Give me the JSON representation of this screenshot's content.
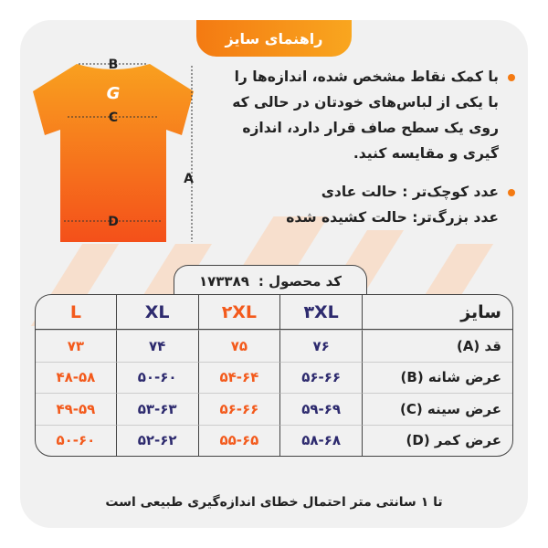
{
  "title": "راهنمای سایز",
  "shirt_labels": {
    "b": "B",
    "c": "C",
    "d": "D",
    "a": "A"
  },
  "instructions": {
    "bullet1": "با کمک نقاط مشخص شده، اندازه‌ها را با یکی از لباس‌های خودتان در حالی که روی یک سطح صاف قرار دارد، اندازه گیری و مقایسه کنید.",
    "bullet2_line1": "عدد کوچک‌تر : حالت عادی",
    "bullet2_line2": "عدد بزرگ‌تر: حالت کشیده شده"
  },
  "product_code": {
    "label": "کد محصول :",
    "value": "۱۷۳۳۸۹"
  },
  "table": {
    "size_label": "سایز",
    "sizes": [
      "۳XL",
      "۲XL",
      "XL",
      "L"
    ],
    "rows": [
      {
        "label": "قد (A)",
        "values": [
          "۷۶",
          "۷۵",
          "۷۴",
          "۷۳"
        ]
      },
      {
        "label": "عرض شانه (B)",
        "values": [
          "۵۶-۶۶",
          "۵۴-۶۴",
          "۵۰-۶۰",
          "۴۸-۵۸"
        ]
      },
      {
        "label": "عرض سینه (C)",
        "values": [
          "۵۹-۶۹",
          "۵۶-۶۶",
          "۵۳-۶۳",
          "۴۹-۵۹"
        ]
      },
      {
        "label": "عرض کمر (D)",
        "values": [
          "۵۸-۶۸",
          "۵۵-۶۵",
          "۵۲-۶۲",
          "۵۰-۶۰"
        ]
      }
    ]
  },
  "footer": "تا ۱ سانتی متر احتمال خطای اندازه‌گیری طبیعی است",
  "colors": {
    "orange": "#f35a1c",
    "navy": "#2d2a6e",
    "card": "#f1f1f1"
  }
}
